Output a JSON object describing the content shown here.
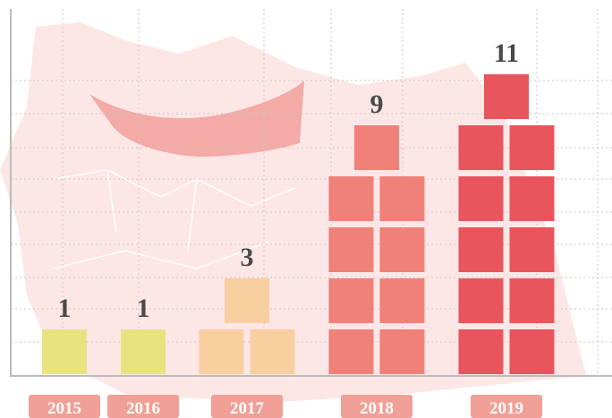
{
  "chart_data": {
    "type": "pictogram",
    "categories": [
      "2015",
      "2016",
      "2017",
      "2018",
      "2019"
    ],
    "values": [
      1,
      1,
      3,
      9,
      11
    ],
    "colors": [
      "#e9e281",
      "#e9e281",
      "#f8cf9e",
      "#ef8178",
      "#e8555d"
    ]
  }
}
